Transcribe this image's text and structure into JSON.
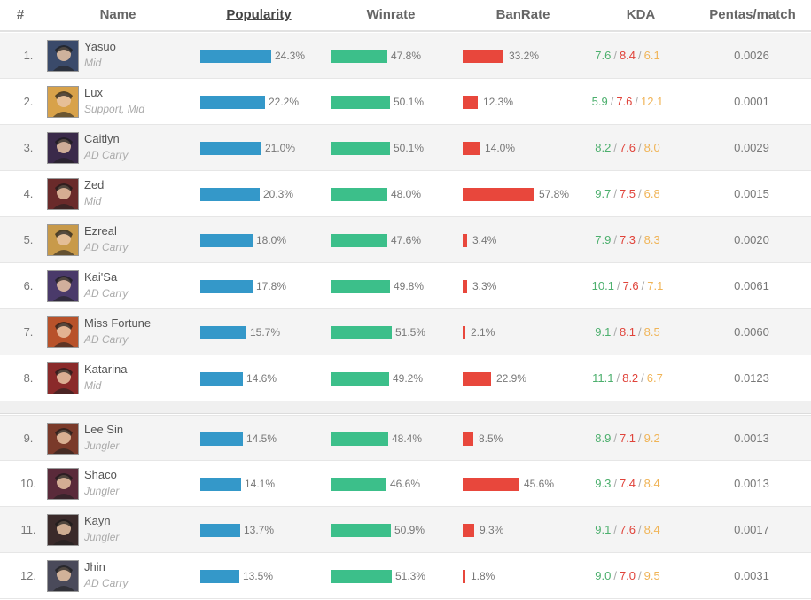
{
  "header": {
    "rank": "#",
    "name": "Name",
    "popularity": "Popularity",
    "winrate": "Winrate",
    "banrate": "BanRate",
    "kda": "KDA",
    "pentas": "Pentas/match"
  },
  "kda_separator": "/",
  "colors": {
    "popularity_bar": "#3498c9",
    "winrate_bar": "#3cbf8a",
    "banrate_bar": "#e8473c",
    "kills": "#4caf6d",
    "deaths": "#e0433a",
    "assists": "#f0b457"
  },
  "rows": [
    {
      "rank": "1.",
      "name": "Yasuo",
      "role": "Mid",
      "avatar_color": "#3a4a6a",
      "popularity": "24.3%",
      "popularity_value": 24.3,
      "winrate": "47.8%",
      "winrate_value": 47.8,
      "banrate": "33.2%",
      "banrate_value": 33.2,
      "kills": "7.6",
      "deaths": "8.4",
      "assists": "6.1",
      "pentas": "0.0026"
    },
    {
      "rank": "2.",
      "name": "Lux",
      "role": "Support, Mid",
      "avatar_color": "#d8a24a",
      "popularity": "22.2%",
      "popularity_value": 22.2,
      "winrate": "50.1%",
      "winrate_value": 50.1,
      "banrate": "12.3%",
      "banrate_value": 12.3,
      "kills": "5.9",
      "deaths": "7.6",
      "assists": "12.1",
      "pentas": "0.0001"
    },
    {
      "rank": "3.",
      "name": "Caitlyn",
      "role": "AD Carry",
      "avatar_color": "#3a2a4a",
      "popularity": "21.0%",
      "popularity_value": 21.0,
      "winrate": "50.1%",
      "winrate_value": 50.1,
      "banrate": "14.0%",
      "banrate_value": 14.0,
      "kills": "8.2",
      "deaths": "7.6",
      "assists": "8.0",
      "pentas": "0.0029"
    },
    {
      "rank": "4.",
      "name": "Zed",
      "role": "Mid",
      "avatar_color": "#6a2a2a",
      "popularity": "20.3%",
      "popularity_value": 20.3,
      "winrate": "48.0%",
      "winrate_value": 48.0,
      "banrate": "57.8%",
      "banrate_value": 57.8,
      "kills": "9.7",
      "deaths": "7.5",
      "assists": "6.8",
      "pentas": "0.0015"
    },
    {
      "rank": "5.",
      "name": "Ezreal",
      "role": "AD Carry",
      "avatar_color": "#c89a4a",
      "popularity": "18.0%",
      "popularity_value": 18.0,
      "winrate": "47.6%",
      "winrate_value": 47.6,
      "banrate": "3.4%",
      "banrate_value": 3.4,
      "kills": "7.9",
      "deaths": "7.3",
      "assists": "8.3",
      "pentas": "0.0020"
    },
    {
      "rank": "6.",
      "name": "Kai'Sa",
      "role": "AD Carry",
      "avatar_color": "#4a3a6a",
      "popularity": "17.8%",
      "popularity_value": 17.8,
      "winrate": "49.8%",
      "winrate_value": 49.8,
      "banrate": "3.3%",
      "banrate_value": 3.3,
      "kills": "10.1",
      "deaths": "7.6",
      "assists": "7.1",
      "pentas": "0.0061"
    },
    {
      "rank": "7.",
      "name": "Miss Fortune",
      "role": "AD Carry",
      "avatar_color": "#b8522a",
      "popularity": "15.7%",
      "popularity_value": 15.7,
      "winrate": "51.5%",
      "winrate_value": 51.5,
      "banrate": "2.1%",
      "banrate_value": 2.1,
      "kills": "9.1",
      "deaths": "8.1",
      "assists": "8.5",
      "pentas": "0.0060"
    },
    {
      "rank": "8.",
      "name": "Katarina",
      "role": "Mid",
      "avatar_color": "#8a2a2a",
      "popularity": "14.6%",
      "popularity_value": 14.6,
      "winrate": "49.2%",
      "winrate_value": 49.2,
      "banrate": "22.9%",
      "banrate_value": 22.9,
      "kills": "11.1",
      "deaths": "8.2",
      "assists": "6.7",
      "pentas": "0.0123"
    },
    {
      "rank": "9.",
      "name": "Lee Sin",
      "role": "Jungler",
      "avatar_color": "#7a3a2a",
      "popularity": "14.5%",
      "popularity_value": 14.5,
      "winrate": "48.4%",
      "winrate_value": 48.4,
      "banrate": "8.5%",
      "banrate_value": 8.5,
      "kills": "8.9",
      "deaths": "7.1",
      "assists": "9.2",
      "pentas": "0.0013"
    },
    {
      "rank": "10.",
      "name": "Shaco",
      "role": "Jungler",
      "avatar_color": "#5a2a3a",
      "popularity": "14.1%",
      "popularity_value": 14.1,
      "winrate": "46.6%",
      "winrate_value": 46.6,
      "banrate": "45.6%",
      "banrate_value": 45.6,
      "kills": "9.3",
      "deaths": "7.4",
      "assists": "8.4",
      "pentas": "0.0013"
    },
    {
      "rank": "11.",
      "name": "Kayn",
      "role": "Jungler",
      "avatar_color": "#3a2a2a",
      "popularity": "13.7%",
      "popularity_value": 13.7,
      "winrate": "50.9%",
      "winrate_value": 50.9,
      "banrate": "9.3%",
      "banrate_value": 9.3,
      "kills": "9.1",
      "deaths": "7.6",
      "assists": "8.4",
      "pentas": "0.0017"
    },
    {
      "rank": "12.",
      "name": "Jhin",
      "role": "AD Carry",
      "avatar_color": "#4a4a5a",
      "popularity": "13.5%",
      "popularity_value": 13.5,
      "winrate": "51.3%",
      "winrate_value": 51.3,
      "banrate": "1.8%",
      "banrate_value": 1.8,
      "kills": "9.0",
      "deaths": "7.0",
      "assists": "9.5",
      "pentas": "0.0031"
    }
  ]
}
